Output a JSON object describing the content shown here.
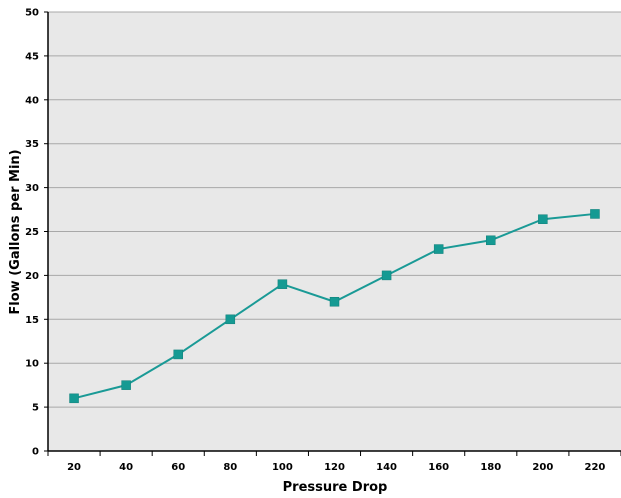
{
  "chart_data": {
    "type": "line",
    "title": "",
    "xlabel": "Pressure Drop",
    "ylabel": "Flow (Gallons per Min)",
    "x": [
      20,
      40,
      60,
      80,
      100,
      120,
      140,
      160,
      180,
      200,
      220
    ],
    "categories": [
      "20",
      "40",
      "60",
      "80",
      "100",
      "120",
      "140",
      "160",
      "180",
      "200",
      "220"
    ],
    "series": [
      {
        "values": [
          6,
          7.5,
          11,
          15,
          19,
          17,
          20,
          23,
          24,
          26.4,
          27
        ]
      }
    ],
    "ylim": [
      0,
      50
    ],
    "yticks": [
      "0",
      "5",
      "10",
      "15",
      "20",
      "25",
      "30",
      "35",
      "40",
      "45",
      "50"
    ],
    "grid": true,
    "legend": "none",
    "colors": {
      "series": "#1a9a96",
      "marker": "#159a93",
      "plot_background": "#e8e8e8",
      "gridline": "#a8a8a8",
      "axis": "#000000"
    }
  }
}
